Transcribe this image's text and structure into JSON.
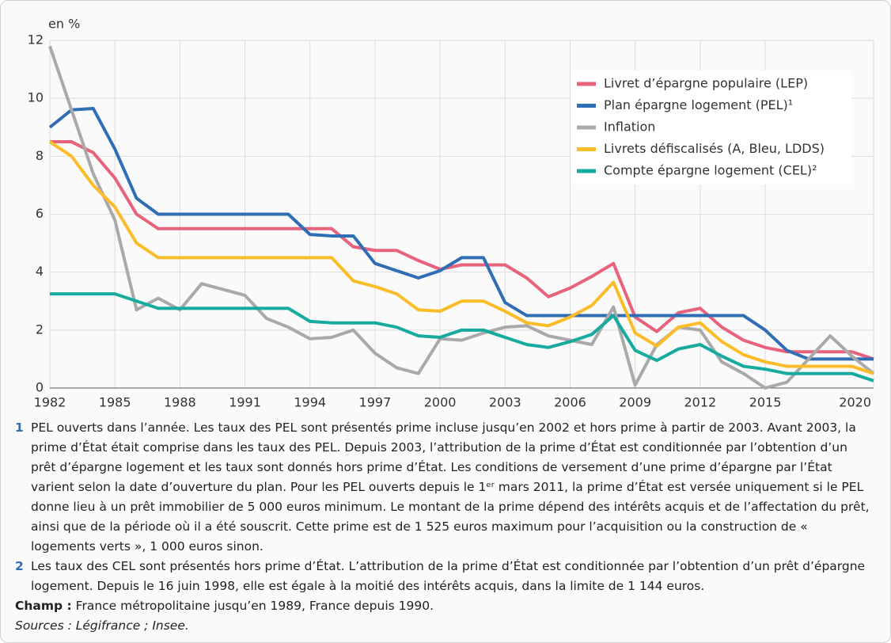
{
  "chart_data": {
    "type": "line",
    "y_label": "en %",
    "legend": "upper right",
    "grid": true,
    "xlim": [
      1982,
      2020
    ],
    "ylim": [
      0,
      12
    ],
    "xticks": [
      1982,
      1985,
      1988,
      1991,
      1994,
      1997,
      2000,
      2003,
      2006,
      2009,
      2012,
      2015,
      2020
    ],
    "yticks": [
      0,
      2,
      4,
      6,
      8,
      10,
      12
    ],
    "x": [
      1982,
      1983,
      1984,
      1985,
      1986,
      1987,
      1988,
      1989,
      1990,
      1991,
      1992,
      1993,
      1994,
      1995,
      1996,
      1997,
      1998,
      1999,
      2000,
      2001,
      2002,
      2003,
      2004,
      2005,
      2006,
      2007,
      2008,
      2009,
      2010,
      2011,
      2012,
      2013,
      2014,
      2015,
      2016,
      2017,
      2018,
      2019,
      2020
    ],
    "series": [
      {
        "name": "Livret d’épargne populaire (LEP)",
        "color": "#e8627c",
        "values": [
          8.5,
          8.5,
          8.125,
          7.25,
          6.0,
          5.5,
          5.5,
          5.5,
          5.5,
          5.5,
          5.5,
          5.5,
          5.5,
          5.5,
          4.875,
          4.75,
          4.75,
          4.4,
          4.1,
          4.25,
          4.25,
          4.25,
          3.8,
          3.15,
          3.45,
          3.85,
          4.3,
          2.45,
          1.95,
          2.6,
          2.75,
          2.1,
          1.65,
          1.4,
          1.25,
          1.25,
          1.25,
          1.25,
          1.0
        ]
      },
      {
        "name": "Plan épargne logement (PEL)¹",
        "color": "#2f6db4",
        "values": [
          9.0,
          9.6,
          9.65,
          8.25,
          6.55,
          6.0,
          6.0,
          6.0,
          6.0,
          6.0,
          6.0,
          6.0,
          5.3,
          5.25,
          5.25,
          4.3,
          4.05,
          3.8,
          4.05,
          4.5,
          4.5,
          2.95,
          2.5,
          2.5,
          2.5,
          2.5,
          2.5,
          2.5,
          2.5,
          2.5,
          2.5,
          2.5,
          2.5,
          2.0,
          1.3,
          1.0,
          1.0,
          1.0,
          1.0
        ]
      },
      {
        "name": "Inflation",
        "color": "#a9a9a9",
        "values": [
          11.8,
          9.6,
          7.4,
          5.8,
          2.7,
          3.1,
          2.7,
          3.6,
          3.4,
          3.2,
          2.4,
          2.1,
          1.7,
          1.75,
          2.0,
          1.2,
          0.7,
          0.5,
          1.7,
          1.65,
          1.9,
          2.1,
          2.15,
          1.8,
          1.65,
          1.5,
          2.8,
          0.1,
          1.5,
          2.1,
          2.0,
          0.9,
          0.5,
          0.0,
          0.2,
          1.0,
          1.8,
          1.1,
          0.5
        ]
      },
      {
        "name": "Livrets défiscalisés (A, Bleu, LDDS)",
        "color": "#fbbd27",
        "values": [
          8.5,
          8.0,
          7.0,
          6.25,
          5.0,
          4.5,
          4.5,
          4.5,
          4.5,
          4.5,
          4.5,
          4.5,
          4.5,
          4.5,
          3.7,
          3.5,
          3.25,
          2.7,
          2.65,
          3.0,
          3.0,
          2.65,
          2.25,
          2.15,
          2.45,
          2.85,
          3.65,
          1.9,
          1.45,
          2.1,
          2.25,
          1.6,
          1.15,
          0.9,
          0.75,
          0.75,
          0.75,
          0.75,
          0.5
        ]
      },
      {
        "name": "Compte épargne logement (CEL)²",
        "color": "#17aa9e",
        "values": [
          3.25,
          3.25,
          3.25,
          3.25,
          3.0,
          2.75,
          2.75,
          2.75,
          2.75,
          2.75,
          2.75,
          2.75,
          2.3,
          2.25,
          2.25,
          2.25,
          2.1,
          1.8,
          1.75,
          2.0,
          2.0,
          1.75,
          1.5,
          1.4,
          1.6,
          1.85,
          2.5,
          1.3,
          0.95,
          1.35,
          1.5,
          1.1,
          0.75,
          0.65,
          0.5,
          0.5,
          0.5,
          0.5,
          0.25
        ]
      }
    ]
  },
  "notes": [
    {
      "number": "1",
      "text": "PEL ouverts dans l’année. Les taux des PEL sont présentés prime incluse jusqu’en 2002 et hors prime à partir de 2003. Avant 2003, la prime d’État était comprise dans les taux des PEL. Depuis 2003, l’attribution de la prime d’État est conditionnée par l’obtention d’un prêt d’épargne logement et les taux sont donnés hors prime d’État. Les conditions de versement d’une prime d’épargne par l’État varient selon la date d’ouverture du plan. Pour les PEL ouverts depuis le 1ᵉʳ mars 2011, la prime d’État est versée uniquement si le PEL donne lieu à un prêt immobilier de 5 000 euros minimum. Le montant de la prime dépend des intérêts acquis et de l’affectation du prêt, ainsi que de la période où il a été souscrit. Cette prime est de 1 525 euros maximum pour l’acquisition ou la construction de « logements verts », 1 000 euros sinon."
    },
    {
      "number": "2",
      "text": "Les taux des CEL sont présentés hors prime d’État. L’attribution de la prime d’État est conditionnée par l’obtention d’un prêt d’épargne logement. Depuis le 16 juin 1998, elle est égale à la moitié des intérêts acquis, dans la limite de 1 144 euros."
    }
  ],
  "champ": {
    "label": "Champ :",
    "text": "France métropolitaine jusqu’en 1989, France depuis 1990."
  },
  "sources": "Sources : Légifrance ; Insee."
}
